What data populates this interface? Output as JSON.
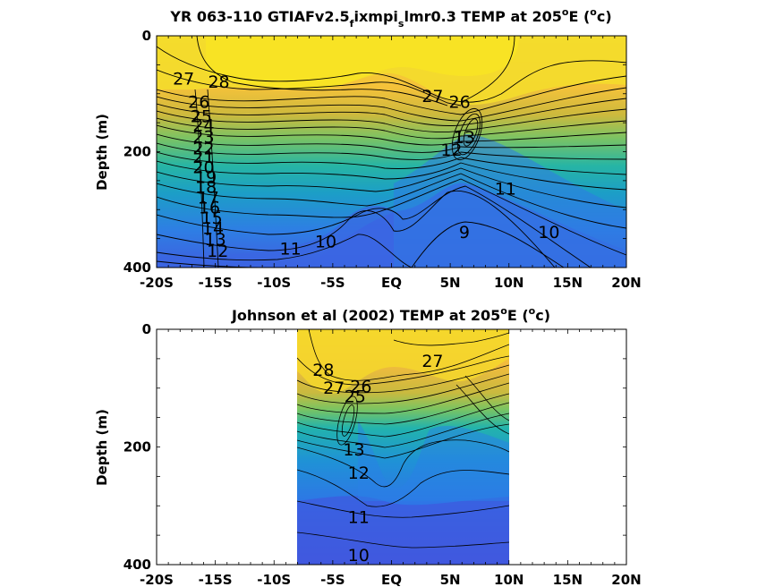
{
  "chart_data": [
    {
      "type": "heatmap",
      "title_main": "YR 063-110 GTIAFv2.5",
      "title_sub1": "f",
      "title_mid": "ixmpi",
      "title_sub2": "s",
      "title_rest": "lmr0.3 TEMP at 205",
      "title_deg": "o",
      "title_unit_pre": "E (",
      "title_unit_sup": "o",
      "title_unit_post": "c)",
      "ylabel": "Depth (m)",
      "x_ticks": [
        "-20S",
        "-15S",
        "-10S",
        "-5S",
        "EQ",
        "5N",
        "10N",
        "15N",
        "20N"
      ],
      "x_values": [
        -20,
        -15,
        -10,
        -5,
        0,
        5,
        10,
        15,
        20
      ],
      "xlim": [
        -20,
        20
      ],
      "y_ticks": [
        "0",
        "200",
        "400"
      ],
      "y_values": [
        0,
        200,
        400
      ],
      "ylim": [
        0,
        400
      ],
      "colorscale": "parula",
      "contour_labels": [
        {
          "text": "27",
          "x": -17.7,
          "y": 75
        },
        {
          "text": "28",
          "x": -14.7,
          "y": 80
        },
        {
          "text": "26",
          "x": -16.4,
          "y": 115
        },
        {
          "text": "25",
          "x": -16.2,
          "y": 140
        },
        {
          "text": "24",
          "x": -16.0,
          "y": 155
        },
        {
          "text": "23",
          "x": -16.0,
          "y": 175
        },
        {
          "text": "22",
          "x": -16.0,
          "y": 195
        },
        {
          "text": "21",
          "x": -16.0,
          "y": 210
        },
        {
          "text": "20",
          "x": -16.0,
          "y": 228
        },
        {
          "text": "19",
          "x": -15.8,
          "y": 245
        },
        {
          "text": "18",
          "x": -15.8,
          "y": 262
        },
        {
          "text": "17",
          "x": -15.6,
          "y": 280
        },
        {
          "text": "16",
          "x": -15.5,
          "y": 297
        },
        {
          "text": "15",
          "x": -15.3,
          "y": 315
        },
        {
          "text": "14",
          "x": -15.2,
          "y": 333
        },
        {
          "text": "13",
          "x": -15.0,
          "y": 352
        },
        {
          "text": "12",
          "x": -14.8,
          "y": 372
        },
        {
          "text": "11",
          "x": -8.6,
          "y": 368
        },
        {
          "text": "10",
          "x": -5.6,
          "y": 356
        },
        {
          "text": "27",
          "x": 3.5,
          "y": 105
        },
        {
          "text": "26",
          "x": 5.8,
          "y": 115
        },
        {
          "text": "13",
          "x": 6.2,
          "y": 176
        },
        {
          "text": "12",
          "x": 5.1,
          "y": 198
        },
        {
          "text": "11",
          "x": 9.7,
          "y": 265
        },
        {
          "text": "9",
          "x": 6.2,
          "y": 340
        },
        {
          "text": "10",
          "x": 13.4,
          "y": 340
        }
      ]
    },
    {
      "type": "heatmap",
      "title": "Johnson et al (2002) TEMP at 205",
      "title_deg": "o",
      "title_unit_pre": "E (",
      "title_unit_sup": "o",
      "title_unit_post": "c)",
      "ylabel": "Depth (m)",
      "x_ticks": [
        "-20S",
        "-15S",
        "-10S",
        "-5S",
        "EQ",
        "5N",
        "10N",
        "15N",
        "20N"
      ],
      "x_values": [
        -20,
        -15,
        -10,
        -5,
        0,
        5,
        10,
        15,
        20
      ],
      "xlim": [
        -20,
        20
      ],
      "y_ticks": [
        "0",
        "200",
        "400"
      ],
      "y_values": [
        0,
        200,
        400
      ],
      "ylim": [
        0,
        400
      ],
      "data_extent": [
        -8,
        10
      ],
      "colorscale": "parula",
      "contour_labels": [
        {
          "text": "28",
          "x": -5.8,
          "y": 70
        },
        {
          "text": "27",
          "x": -4.9,
          "y": 100
        },
        {
          "text": "26",
          "x": -2.6,
          "y": 98
        },
        {
          "text": "25",
          "x": -3.1,
          "y": 115
        },
        {
          "text": "13",
          "x": -3.2,
          "y": 205
        },
        {
          "text": "12",
          "x": -2.8,
          "y": 245
        },
        {
          "text": "27",
          "x": 3.5,
          "y": 55
        },
        {
          "text": "11",
          "x": -2.8,
          "y": 320
        },
        {
          "text": "10",
          "x": -2.8,
          "y": 385
        }
      ]
    }
  ]
}
